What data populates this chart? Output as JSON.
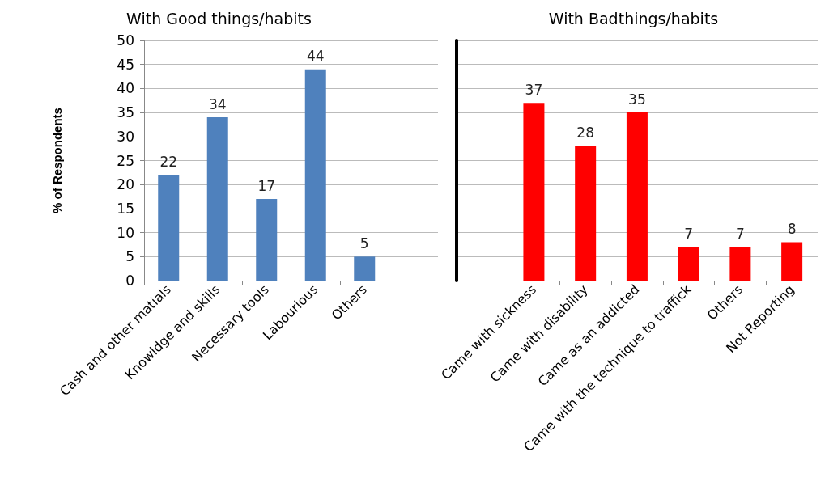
{
  "chart_data": [
    {
      "type": "bar",
      "title": "With Good things/habits",
      "ylabel": "% of Respondents",
      "categories": [
        "Cash and other matials",
        "Knowldge and skills",
        "Necessary tools",
        "Labourious",
        "Others",
        null
      ],
      "series": [
        {
          "color": "#4f81bd",
          "values": [
            22,
            34,
            17,
            44,
            5,
            null
          ]
        }
      ],
      "ylim": [
        0,
        50
      ],
      "yticks": [
        0,
        5,
        10,
        15,
        20,
        25,
        30,
        35,
        40,
        45,
        50
      ],
      "grid": "y",
      "data_labels": true
    },
    {
      "type": "bar",
      "title": "With Badthings/habits",
      "categories": [
        null,
        "Came with sickness",
        "Came with disability",
        "Came as an addicted",
        "Came with the technique to traffick",
        "Others",
        "Not Reporting"
      ],
      "series": [
        {
          "color": "#ff0000",
          "values": [
            null,
            37,
            28,
            35,
            7,
            7,
            8
          ]
        }
      ],
      "ylim": [
        0,
        50
      ],
      "yticks": [
        0,
        5,
        10,
        15,
        20,
        25,
        30,
        35,
        40,
        45,
        50
      ],
      "grid": "y",
      "data_labels": true,
      "tick_labels": "x"
    }
  ]
}
